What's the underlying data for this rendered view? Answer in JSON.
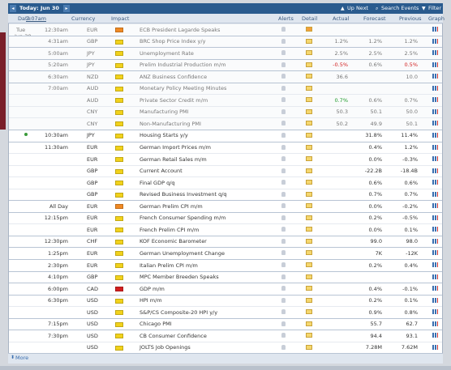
{
  "toolbar": {
    "today": "Today: Jun 30",
    "up_next": "Up Next",
    "search": "Search Events",
    "filter": "Filter"
  },
  "columns": {
    "date": "Date",
    "time": "7:07am",
    "currency": "Currency",
    "impact": "Impact",
    "alerts": "Alerts",
    "detail": "Detail",
    "actual": "Actual",
    "forecast": "Forecast",
    "previous": "Previous",
    "graph": "Graph"
  },
  "impact_colors": {
    "high": "#d21f1f",
    "medium": "#f08a24",
    "low": "#f2d21b"
  },
  "rows": [
    {
      "day": "Tue",
      "date": "Jun 30",
      "time": "12:30am",
      "currency": "EUR",
      "impact": "medium",
      "event": "ECB President Lagarde Speaks",
      "past": true
    },
    {
      "time": "4:31am",
      "currency": "GBP",
      "impact": "low",
      "event": "BRC Shop Price Index y/y",
      "actual": "1.2%",
      "forecast": "1.2%",
      "previous": "1.2%",
      "past": true
    },
    {
      "time": "5:00am",
      "currency": "JPY",
      "impact": "low",
      "event": "Unemployment Rate",
      "actual": "2.5%",
      "forecast": "2.5%",
      "previous": "2.5%",
      "past": true
    },
    {
      "time": "5:20am",
      "currency": "JPY",
      "impact": "low",
      "event": "Prelim Industrial Production m/m",
      "actual": "-0.5%",
      "actual_color": "#d21f1f",
      "forecast": "0.6%",
      "previous": "0.5%",
      "previous_color": "#d21f1f",
      "past": true
    },
    {
      "time": "6:30am",
      "currency": "NZD",
      "impact": "low",
      "event": "ANZ Business Confidence",
      "actual": "36.6",
      "previous": "10.0",
      "past": true
    },
    {
      "time": "7:00am",
      "currency": "AUD",
      "impact": "low",
      "event": "Monetary Policy Meeting Minutes",
      "past": true
    },
    {
      "currency": "AUD",
      "impact": "low",
      "event": "Private Sector Credit m/m",
      "actual": "0.7%",
      "actual_color": "#1e9a2a",
      "forecast": "0.6%",
      "previous": "0.7%",
      "past": true
    },
    {
      "currency": "CNY",
      "impact": "low",
      "event": "Manufacturing PMI",
      "actual": "50.3",
      "forecast": "50.1",
      "previous": "50.0",
      "past": true
    },
    {
      "currency": "CNY",
      "impact": "low",
      "event": "Non-Manufacturing PMI",
      "actual": "50.2",
      "forecast": "49.9",
      "previous": "50.1",
      "past": true
    },
    {
      "time": "10:30am",
      "currency": "JPY",
      "impact": "low",
      "event": "Housing Starts y/y",
      "forecast": "31.8%",
      "previous": "11.4%",
      "next": true
    },
    {
      "time": "11:30am",
      "currency": "EUR",
      "impact": "low",
      "event": "German Import Prices m/m",
      "forecast": "0.4%",
      "previous": "1.2%"
    },
    {
      "currency": "EUR",
      "impact": "low",
      "event": "German Retail Sales m/m",
      "forecast": "0.0%",
      "previous": "-0.3%"
    },
    {
      "currency": "GBP",
      "impact": "low",
      "event": "Current Account",
      "forecast": "-22.2B",
      "previous": "-18.4B"
    },
    {
      "currency": "GBP",
      "impact": "low",
      "event": "Final GDP q/q",
      "forecast": "0.6%",
      "previous": "0.6%"
    },
    {
      "currency": "GBP",
      "impact": "low",
      "event": "Revised Business Investment q/q",
      "forecast": "0.7%",
      "previous": "0.7%"
    },
    {
      "time": "All Day",
      "currency": "EUR",
      "impact": "medium",
      "event": "German Prelim CPI m/m",
      "forecast": "0.0%",
      "previous": "-0.2%"
    },
    {
      "time": "12:15pm",
      "currency": "EUR",
      "impact": "low",
      "event": "French Consumer Spending m/m",
      "forecast": "0.2%",
      "previous": "-0.5%"
    },
    {
      "currency": "EUR",
      "impact": "low",
      "event": "French Prelim CPI m/m",
      "forecast": "0.0%",
      "previous": "0.1%"
    },
    {
      "time": "12:30pm",
      "currency": "CHF",
      "impact": "low",
      "event": "KOF Economic Barometer",
      "forecast": "99.0",
      "previous": "98.0"
    },
    {
      "time": "1:25pm",
      "currency": "EUR",
      "impact": "low",
      "event": "German Unemployment Change",
      "forecast": "7K",
      "previous": "-12K"
    },
    {
      "time": "2:30pm",
      "currency": "EUR",
      "impact": "low",
      "event": "Italian Prelim CPI m/m",
      "forecast": "0.2%",
      "previous": "0.4%"
    },
    {
      "time": "4:10pm",
      "currency": "GBP",
      "impact": "low",
      "event": "MPC Member Breeden Speaks"
    },
    {
      "time": "6:00pm",
      "currency": "CAD",
      "impact": "high",
      "event": "GDP m/m",
      "forecast": "0.4%",
      "previous": "-0.1%"
    },
    {
      "time": "6:30pm",
      "currency": "USD",
      "impact": "low",
      "event": "HPI m/m",
      "forecast": "0.2%",
      "previous": "0.1%"
    },
    {
      "currency": "USD",
      "impact": "low",
      "event": "S&P/CS Composite-20 HPI y/y",
      "forecast": "0.9%",
      "previous": "0.8%"
    },
    {
      "time": "7:15pm",
      "currency": "USD",
      "impact": "low",
      "event": "Chicago PMI",
      "forecast": "55.7",
      "previous": "62.7"
    },
    {
      "time": "7:30pm",
      "currency": "USD",
      "impact": "low",
      "event": "CB Consumer Confidence",
      "forecast": "94.4",
      "previous": "93.1"
    },
    {
      "currency": "USD",
      "impact": "low",
      "event": "JOLTS Job Openings",
      "forecast": "7.28M",
      "previous": "7.62M"
    }
  ],
  "footer": {
    "more": "More"
  }
}
